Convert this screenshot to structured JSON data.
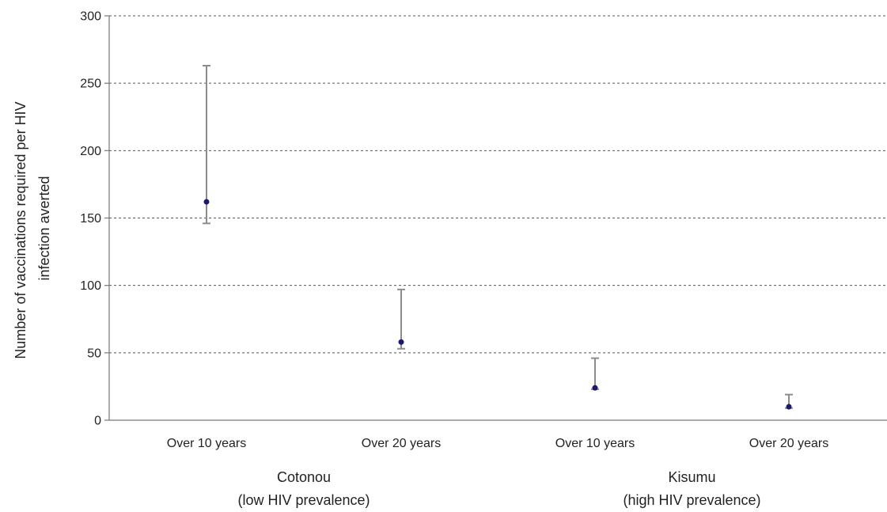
{
  "chart_data": {
    "type": "scatter",
    "title": "",
    "ylabel_lines": [
      "Number of vaccinations required per HIV",
      "infection averted"
    ],
    "ylim": [
      0,
      300
    ],
    "yticks": [
      0,
      50,
      100,
      150,
      200,
      250,
      300
    ],
    "grid": true,
    "categories": [
      "Over 10 years",
      "Over 20 years",
      "Over 10 years",
      "Over 20 years"
    ],
    "groups": [
      {
        "label_lines": [
          "Cotonou",
          "(low HIV prevalence)"
        ],
        "category_indices": [
          0,
          1
        ]
      },
      {
        "label_lines": [
          "Kisumu",
          "(high HIV prevalence)"
        ],
        "category_indices": [
          2,
          3
        ]
      }
    ],
    "series": [
      {
        "values": [
          162,
          58,
          24,
          10
        ],
        "lower": [
          146,
          53,
          23,
          9
        ],
        "upper": [
          263,
          97,
          46,
          19
        ]
      }
    ],
    "colors": {
      "point": "#1a1a6e",
      "error_bar": "#8c8c8c",
      "grid": "#555555"
    }
  }
}
